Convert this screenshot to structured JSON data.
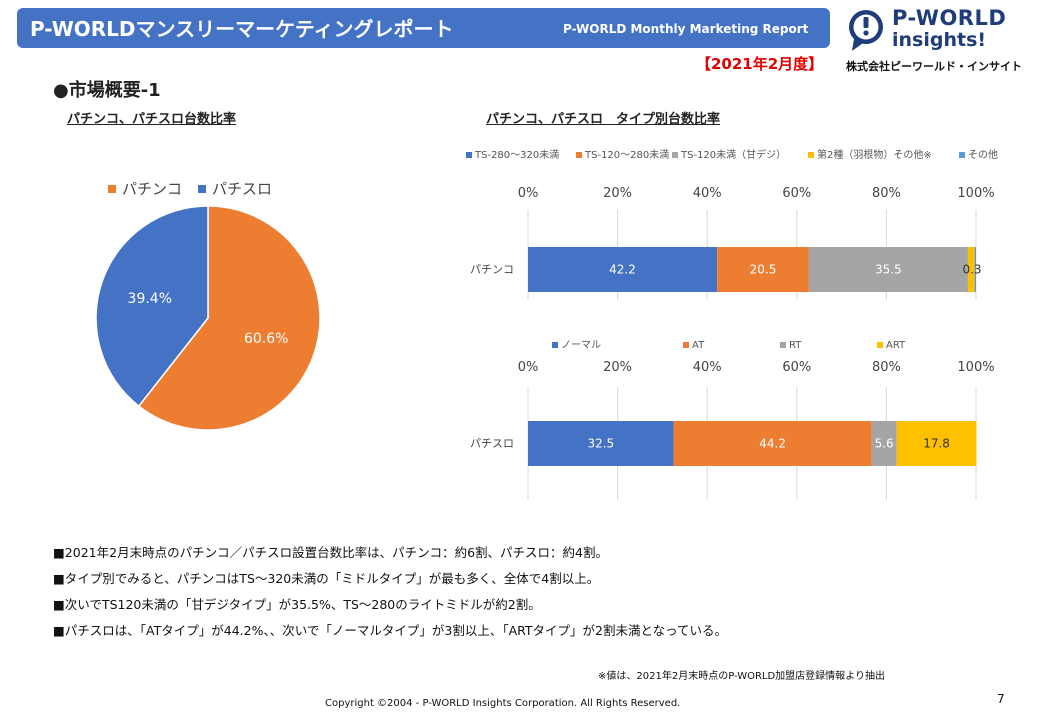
{
  "header": {
    "title": "P-WORLDマンスリーマーケティングレポート",
    "subtitle": "P-WORLD Monthly Marketing Report",
    "period": "【2021年2月度】",
    "logo_line1": "P-WORLD",
    "logo_line2": "insights!",
    "company": "株式会社ピーワールド・インサイト",
    "accent_color": "#4472c4"
  },
  "section_title": "●市場概要-1",
  "chart_data": [
    {
      "type": "pie",
      "title": "パチンコ、パチスロ台数比率",
      "slices": [
        {
          "name": "パチンコ",
          "value": 60.6,
          "label": "60.6%",
          "color": "#ed7d31"
        },
        {
          "name": "パチスロ",
          "value": 39.4,
          "label": "39.4%",
          "color": "#4472c4"
        }
      ]
    },
    {
      "type": "bar",
      "orientation": "horizontal-stacked-100",
      "title": "パチンコ、パチスロ　タイプ別台数比率",
      "xlim": [
        0,
        100
      ],
      "tick_labels": [
        "0%",
        "20%",
        "40%",
        "60%",
        "80%",
        "100%"
      ],
      "categories": [
        "パチンコ"
      ],
      "series": [
        {
          "name": "TS-280～320未満",
          "color": "#4472c4",
          "values": [
            42.2
          ]
        },
        {
          "name": "TS-120～280未満",
          "color": "#ed7d31",
          "values": [
            20.5
          ]
        },
        {
          "name": "TS-120未満（甘デジ）",
          "color": "#a5a5a5",
          "values": [
            35.5
          ]
        },
        {
          "name": "第2種（羽根物）その他※",
          "color": "#ffc000",
          "values": [
            1.5
          ]
        },
        {
          "name": "その他",
          "color": "#5b9bd5",
          "values": [
            0.3
          ]
        }
      ],
      "data_labels": [
        "42.2",
        "20.5",
        "35.5",
        "",
        "0.3"
      ]
    },
    {
      "type": "bar",
      "orientation": "horizontal-stacked-100",
      "xlim": [
        0,
        100
      ],
      "tick_labels": [
        "0%",
        "20%",
        "40%",
        "60%",
        "80%",
        "100%"
      ],
      "categories": [
        "パチスロ"
      ],
      "series": [
        {
          "name": "ノーマル",
          "color": "#4472c4",
          "values": [
            32.5
          ]
        },
        {
          "name": "AT",
          "color": "#ed7d31",
          "values": [
            44.2
          ]
        },
        {
          "name": "RT",
          "color": "#a5a5a5",
          "values": [
            5.6
          ]
        },
        {
          "name": "ART",
          "color": "#ffc000",
          "values": [
            17.8
          ]
        }
      ],
      "data_labels": [
        "32.5",
        "44.2",
        "5.6",
        "17.8"
      ]
    }
  ],
  "notes": [
    "■2021年2月末時点のパチンコ／パチスロ設置台数比率は、パチンコ：約6割、パチスロ：約4割。",
    "■タイプ別でみると、パチンコはTS～320未満の「ミドルタイプ」が最も多く、全体で4割以上。",
    "■次いでTS120未満の「甘デジタイプ」が35.5%、TS～280のライトミドルが約2割。",
    "■パチスロは、「ATタイプ」が44.2%、、次いで「ノーマルタイプ」が3割以上、「ARTタイプ」が2割未満となっている。"
  ],
  "footnote": "※値は、2021年2月末時点のP-WORLD加盟店登録情報より抽出",
  "copyright": "Copyright ©2004 -  P-WORLD Insights Corporation. All Rights Reserved.",
  "page_number": "7"
}
